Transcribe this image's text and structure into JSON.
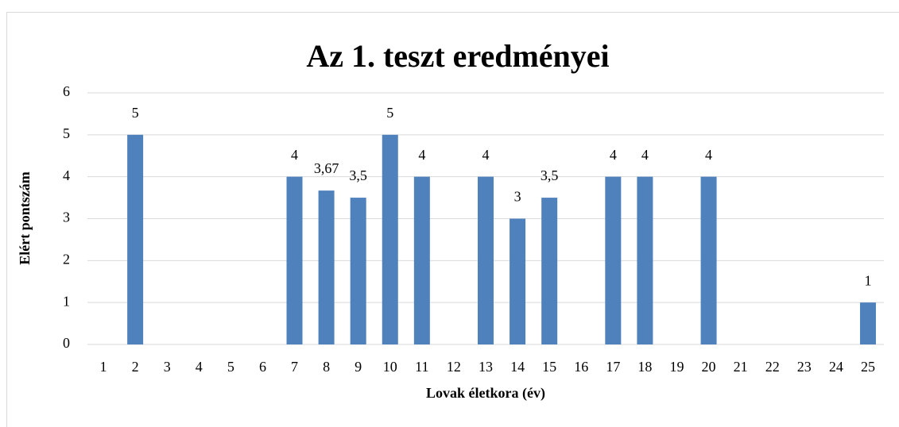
{
  "chart_data": {
    "type": "bar",
    "title": "Az 1. teszt eredményei",
    "x_label": "Lovak életkora (év)",
    "y_label": "Elért pontszám",
    "categories": [
      "1",
      "2",
      "3",
      "4",
      "5",
      "6",
      "7",
      "8",
      "9",
      "10",
      "11",
      "12",
      "13",
      "14",
      "15",
      "16",
      "17",
      "18",
      "19",
      "20",
      "21",
      "22",
      "23",
      "24",
      "25"
    ],
    "values": [
      null,
      5,
      null,
      null,
      null,
      null,
      4,
      3.67,
      3.5,
      5,
      4,
      null,
      4,
      3,
      3.5,
      null,
      4,
      4,
      null,
      4,
      null,
      null,
      null,
      null,
      1
    ],
    "value_labels": [
      null,
      "5",
      null,
      null,
      null,
      null,
      "4",
      "3,67",
      "3,5",
      "5",
      "4",
      null,
      "4",
      "3",
      "3,5",
      null,
      "4",
      "4",
      null,
      "4",
      null,
      null,
      null,
      null,
      "1"
    ],
    "color": "#4f81bd",
    "ylim": [
      0,
      6
    ],
    "yticks": [
      0,
      1,
      2,
      3,
      4,
      5,
      6
    ],
    "grid": true
  }
}
